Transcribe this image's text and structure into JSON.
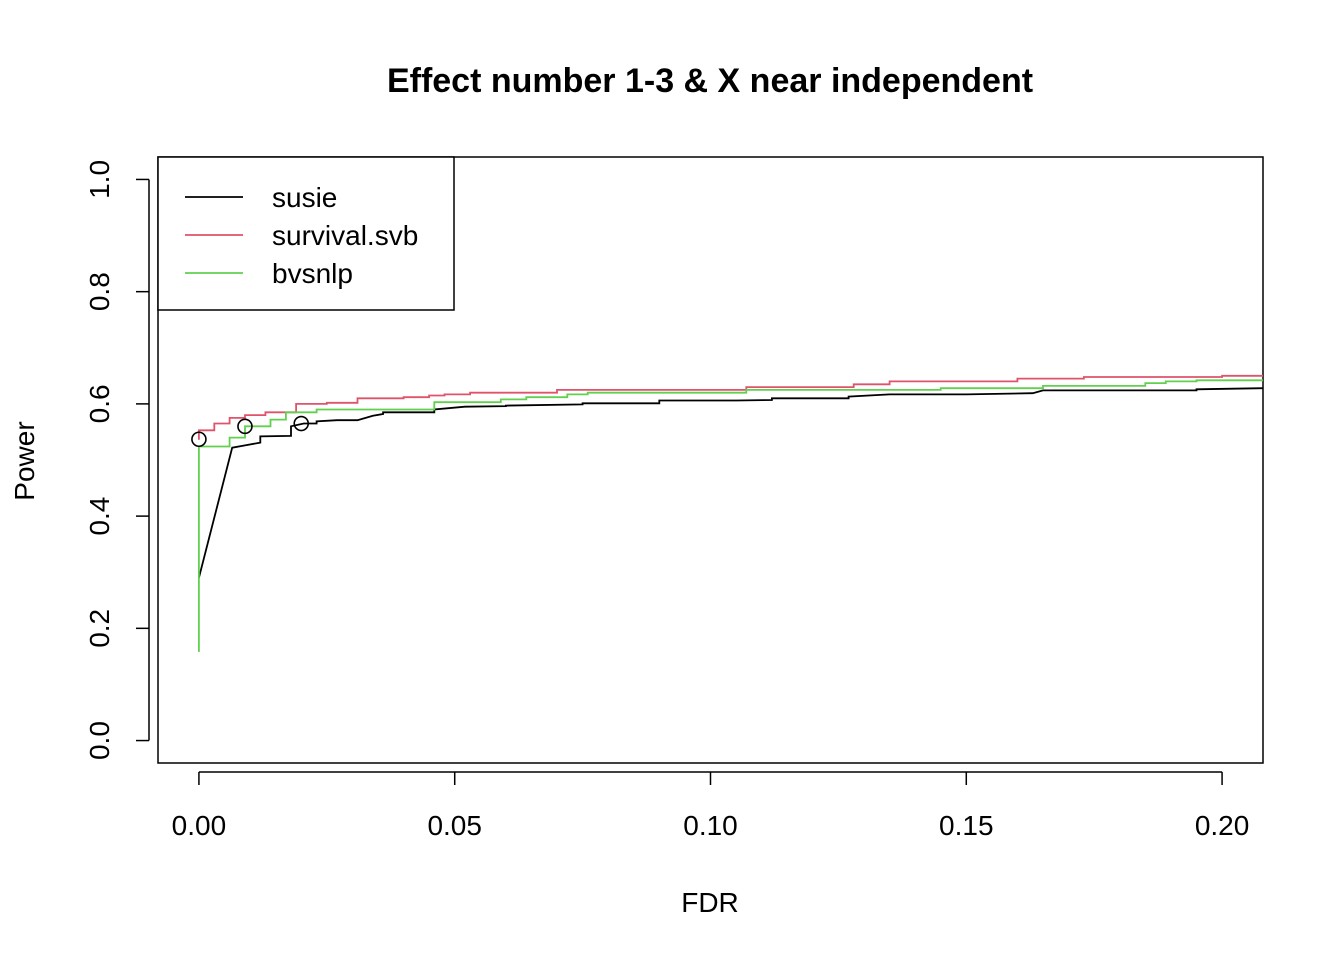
{
  "chart_data": {
    "type": "line",
    "title": "Effect number 1-3 & X near independent",
    "xlabel": "FDR",
    "ylabel": "Power",
    "xlim": [
      -0.008,
      0.208
    ],
    "ylim": [
      -0.04,
      1.04
    ],
    "xticks": [
      0.0,
      0.05,
      0.1,
      0.15,
      0.2
    ],
    "xtick_labels": [
      "0.00",
      "0.05",
      "0.10",
      "0.15",
      "0.20"
    ],
    "yticks": [
      0.0,
      0.2,
      0.4,
      0.6,
      0.8,
      1.0
    ],
    "ytick_labels": [
      "0.0",
      "0.2",
      "0.4",
      "0.6",
      "0.8",
      "1.0"
    ],
    "legend": {
      "position": "top-left",
      "entries": [
        "susie",
        "survival.svb",
        "bvsnlp"
      ]
    },
    "grid": false,
    "series": [
      {
        "name": "susie",
        "color": "#000000",
        "step": false,
        "points": [
          [
            0.0,
            0.29
          ],
          [
            0.0065,
            0.522
          ],
          [
            0.009,
            0.526
          ],
          [
            0.012,
            0.531
          ],
          [
            0.012,
            0.542
          ],
          [
            0.018,
            0.543
          ],
          [
            0.018,
            0.56
          ],
          [
            0.0205,
            0.565
          ],
          [
            0.023,
            0.565
          ],
          [
            0.023,
            0.569
          ],
          [
            0.027,
            0.571
          ],
          [
            0.031,
            0.571
          ],
          [
            0.034,
            0.579
          ],
          [
            0.036,
            0.582
          ],
          [
            0.036,
            0.585
          ],
          [
            0.046,
            0.585
          ],
          [
            0.046,
            0.59
          ],
          [
            0.052,
            0.595
          ],
          [
            0.06,
            0.596
          ],
          [
            0.06,
            0.597
          ],
          [
            0.075,
            0.599
          ],
          [
            0.075,
            0.601
          ],
          [
            0.09,
            0.601
          ],
          [
            0.09,
            0.606
          ],
          [
            0.105,
            0.606
          ],
          [
            0.112,
            0.607
          ],
          [
            0.112,
            0.61
          ],
          [
            0.127,
            0.61
          ],
          [
            0.127,
            0.613
          ],
          [
            0.135,
            0.617
          ],
          [
            0.15,
            0.617
          ],
          [
            0.163,
            0.619
          ],
          [
            0.165,
            0.624
          ],
          [
            0.195,
            0.624
          ],
          [
            0.195,
            0.626
          ],
          [
            0.208,
            0.628
          ]
        ]
      },
      {
        "name": "survival.svb",
        "color": "#DF536B",
        "step": true,
        "points": [
          [
            0.0,
            0.536
          ],
          [
            0.0,
            0.553
          ],
          [
            0.003,
            0.553
          ],
          [
            0.003,
            0.565
          ],
          [
            0.006,
            0.565
          ],
          [
            0.006,
            0.575
          ],
          [
            0.009,
            0.575
          ],
          [
            0.009,
            0.58
          ],
          [
            0.013,
            0.58
          ],
          [
            0.013,
            0.585
          ],
          [
            0.019,
            0.585
          ],
          [
            0.019,
            0.6
          ],
          [
            0.025,
            0.6
          ],
          [
            0.025,
            0.602
          ],
          [
            0.031,
            0.602
          ],
          [
            0.031,
            0.61
          ],
          [
            0.04,
            0.61
          ],
          [
            0.04,
            0.612
          ],
          [
            0.045,
            0.612
          ],
          [
            0.045,
            0.615
          ],
          [
            0.048,
            0.615
          ],
          [
            0.048,
            0.617
          ],
          [
            0.053,
            0.617
          ],
          [
            0.053,
            0.62
          ],
          [
            0.07,
            0.62
          ],
          [
            0.07,
            0.625
          ],
          [
            0.107,
            0.625
          ],
          [
            0.107,
            0.63
          ],
          [
            0.128,
            0.63
          ],
          [
            0.128,
            0.635
          ],
          [
            0.135,
            0.635
          ],
          [
            0.135,
            0.64
          ],
          [
            0.16,
            0.64
          ],
          [
            0.16,
            0.645
          ],
          [
            0.173,
            0.645
          ],
          [
            0.173,
            0.648
          ],
          [
            0.2,
            0.648
          ],
          [
            0.2,
            0.65
          ],
          [
            0.208,
            0.65
          ]
        ]
      },
      {
        "name": "bvsnlp",
        "color": "#61D04F",
        "step": true,
        "points": [
          [
            0.0,
            0.158
          ],
          [
            0.0,
            0.524
          ],
          [
            0.006,
            0.524
          ],
          [
            0.006,
            0.54
          ],
          [
            0.009,
            0.54
          ],
          [
            0.009,
            0.56
          ],
          [
            0.014,
            0.56
          ],
          [
            0.014,
            0.572
          ],
          [
            0.017,
            0.572
          ],
          [
            0.017,
            0.585
          ],
          [
            0.023,
            0.585
          ],
          [
            0.023,
            0.59
          ],
          [
            0.046,
            0.59
          ],
          [
            0.046,
            0.603
          ],
          [
            0.059,
            0.603
          ],
          [
            0.059,
            0.608
          ],
          [
            0.064,
            0.608
          ],
          [
            0.064,
            0.612
          ],
          [
            0.072,
            0.612
          ],
          [
            0.072,
            0.617
          ],
          [
            0.076,
            0.617
          ],
          [
            0.076,
            0.62
          ],
          [
            0.107,
            0.62
          ],
          [
            0.107,
            0.625
          ],
          [
            0.145,
            0.625
          ],
          [
            0.145,
            0.628
          ],
          [
            0.165,
            0.628
          ],
          [
            0.165,
            0.632
          ],
          [
            0.185,
            0.632
          ],
          [
            0.185,
            0.637
          ],
          [
            0.189,
            0.637
          ],
          [
            0.189,
            0.64
          ],
          [
            0.195,
            0.64
          ],
          [
            0.195,
            0.642
          ],
          [
            0.208,
            0.642
          ]
        ]
      }
    ],
    "markers": [
      {
        "shape": "open-circle",
        "x": 0.0,
        "y": 0.537
      },
      {
        "shape": "open-circle",
        "x": 0.009,
        "y": 0.56
      },
      {
        "shape": "open-circle",
        "x": 0.02,
        "y": 0.565
      }
    ]
  }
}
